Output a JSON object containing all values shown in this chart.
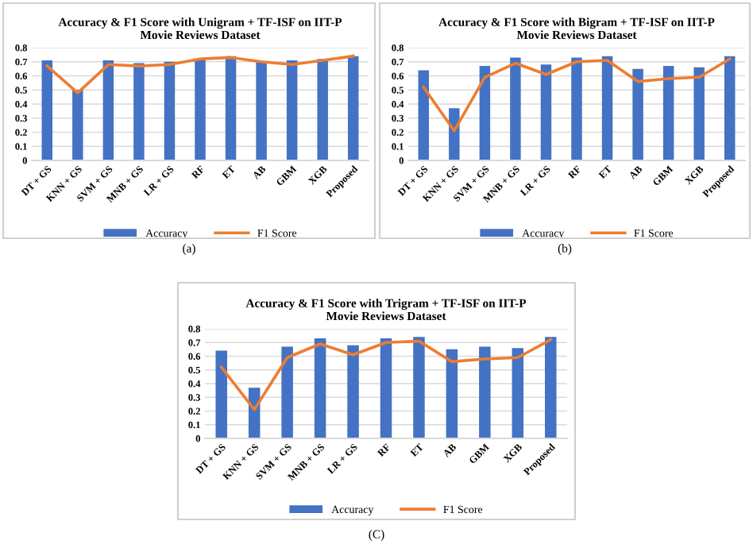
{
  "chart_data": [
    {
      "type": "bar",
      "title": "Accuracy & F1 Score with Unigram + TF-ISF on IIT-P\nMovie Reviews Dataset",
      "categories": [
        "DT + GS",
        "KNN + GS",
        "SVM + GS",
        "MNB + GS",
        "LR + GS",
        "RF",
        "ET",
        "AB",
        "GBM",
        "XGB",
        "Proposed"
      ],
      "series": [
        {
          "name": "Accuracy",
          "color": "#4472c4",
          "values": [
            0.71,
            0.5,
            0.71,
            0.69,
            0.7,
            0.72,
            0.74,
            0.7,
            0.71,
            0.72,
            0.74
          ]
        },
        {
          "name": "F1 Score",
          "type": "line",
          "color": "#ed7d31",
          "values": [
            0.67,
            0.48,
            0.68,
            0.67,
            0.68,
            0.72,
            0.73,
            0.7,
            0.68,
            0.71,
            0.74
          ]
        }
      ],
      "ylim": [
        0,
        0.8
      ],
      "yticks": [
        0,
        0.1,
        0.2,
        0.3,
        0.4,
        0.5,
        0.6,
        0.7,
        0.8
      ],
      "grid": "y",
      "legend": "bottom",
      "annotations": [
        "(a)"
      ]
    },
    {
      "type": "bar",
      "title": "Accuracy & F1 Score with Bigram + TF-ISF on IIT-P\nMovie Reviews Dataset",
      "categories": [
        "DT + GS",
        "KNN + GS",
        "SVM + GS",
        "MNB + GS",
        "LR + GS",
        "RF",
        "ET",
        "AB",
        "GBM",
        "XGB",
        "Proposed"
      ],
      "series": [
        {
          "name": "Accuracy",
          "color": "#4472c4",
          "values": [
            0.64,
            0.37,
            0.67,
            0.73,
            0.68,
            0.73,
            0.74,
            0.65,
            0.67,
            0.66,
            0.74
          ]
        },
        {
          "name": "F1 Score",
          "type": "line",
          "color": "#ed7d31",
          "values": [
            0.52,
            0.21,
            0.59,
            0.69,
            0.61,
            0.7,
            0.71,
            0.56,
            0.58,
            0.59,
            0.72
          ]
        }
      ],
      "ylim": [
        0,
        0.8
      ],
      "yticks": [
        0,
        0.1,
        0.2,
        0.3,
        0.4,
        0.5,
        0.6,
        0.7,
        0.8
      ],
      "grid": "y",
      "legend": "bottom",
      "annotations": [
        "(b)"
      ]
    },
    {
      "type": "bar",
      "title": "Accuracy & F1 Score with Trigram + TF-ISF on IIT-P\nMovie Reviews Dataset",
      "categories": [
        "DT + GS",
        "KNN + GS",
        "SVM + GS",
        "MNB + GS",
        "LR + GS",
        "RF",
        "ET",
        "AB",
        "GBM",
        "XGB",
        "Proposed"
      ],
      "series": [
        {
          "name": "Accuracy",
          "color": "#4472c4",
          "values": [
            0.64,
            0.37,
            0.67,
            0.73,
            0.68,
            0.73,
            0.74,
            0.65,
            0.67,
            0.66,
            0.74
          ]
        },
        {
          "name": "F1 Score",
          "type": "line",
          "color": "#ed7d31",
          "values": [
            0.52,
            0.21,
            0.59,
            0.69,
            0.61,
            0.7,
            0.71,
            0.56,
            0.58,
            0.59,
            0.72
          ]
        }
      ],
      "ylim": [
        0,
        0.8
      ],
      "yticks": [
        0,
        0.1,
        0.2,
        0.3,
        0.4,
        0.5,
        0.6,
        0.7,
        0.8
      ],
      "grid": "y",
      "legend": "bottom",
      "annotations": [
        "(C)"
      ]
    }
  ]
}
